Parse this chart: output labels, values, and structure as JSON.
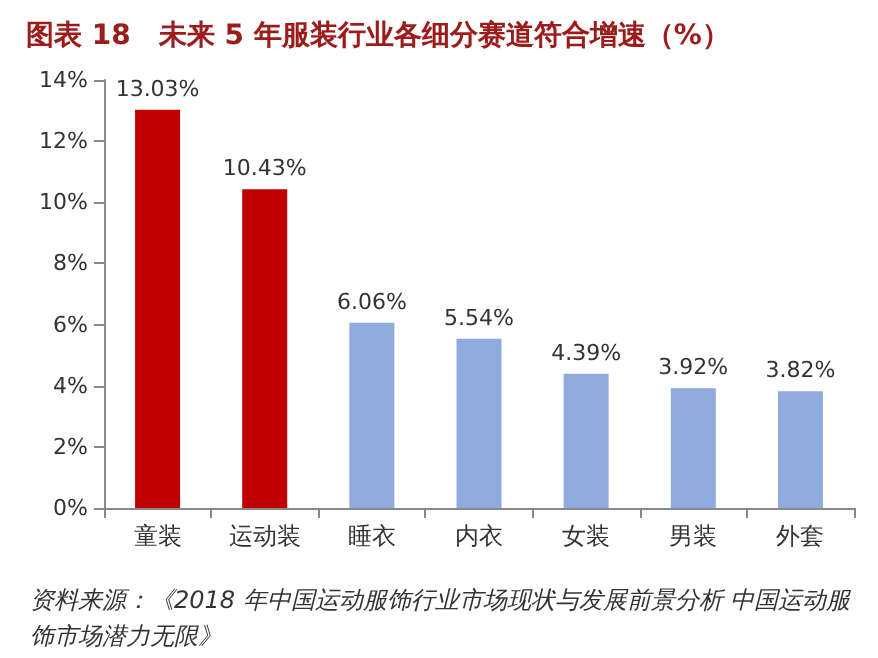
{
  "chart_data": {
    "type": "bar",
    "title": "图表 18　未来 5 年服装行业各细分赛道符合增速（%）",
    "categories": [
      "童装",
      "运动装",
      "睡衣",
      "内衣",
      "女装",
      "男装",
      "外套"
    ],
    "values": [
      13.03,
      10.43,
      6.06,
      5.54,
      4.39,
      3.92,
      3.82
    ],
    "colors": [
      "#c00000",
      "#c00000",
      "#8faadc",
      "#8faadc",
      "#8faadc",
      "#8faadc",
      "#8faadc"
    ],
    "value_labels": [
      "13.03%",
      "10.43%",
      "6.06%",
      "5.54%",
      "4.39%",
      "3.92%",
      "3.82%"
    ],
    "ylim": [
      0,
      14
    ],
    "yticks": [
      {
        "value": 0,
        "label": "0%"
      },
      {
        "value": 2,
        "label": "2%"
      },
      {
        "value": 4,
        "label": "4%"
      },
      {
        "value": 6,
        "label": "6%"
      },
      {
        "value": 8,
        "label": "8%"
      },
      {
        "value": 10,
        "label": "10%"
      },
      {
        "value": 12,
        "label": "12%"
      },
      {
        "value": 14,
        "label": "14%"
      }
    ],
    "grid": false,
    "annotations": [
      "资料来源：《2018 年中国运动服饰行业市场现状与发展前景分析 中国运动服饰市场潜力无限》"
    ]
  }
}
